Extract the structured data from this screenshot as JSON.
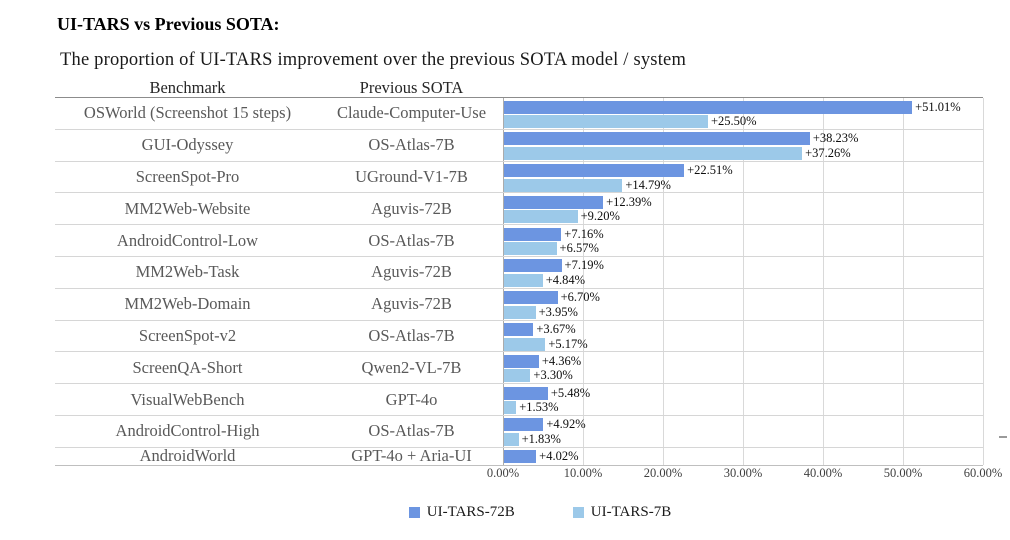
{
  "header": {
    "title": "UI-TARS vs Previous SOTA:",
    "subtitle": "The proportion of UI-TARS improvement over the previous SOTA model / system"
  },
  "table": {
    "columns": [
      "Benchmark",
      "Previous SOTA"
    ]
  },
  "chart_data": {
    "type": "bar",
    "orientation": "horizontal",
    "title": "UI-TARS vs Previous SOTA:",
    "subtitle": "The proportion of UI-TARS improvement over the previous SOTA model / system",
    "xlim": [
      0,
      60
    ],
    "x_tick_labels": [
      "0.00%",
      "10.00%",
      "20.00%",
      "30.00%",
      "40.00%",
      "50.00%",
      "60.00%"
    ],
    "grid": true,
    "legend_position": "bottom",
    "series_names": [
      "UI-TARS-72B",
      "UI-TARS-7B"
    ],
    "colors": {
      "ui_tars_72b": "#6C95E1",
      "ui_tars_7b": "#9CC9E9"
    },
    "rows": [
      {
        "benchmark": "OSWorld (Screenshot 15 steps)",
        "previous_sota": "Claude-Computer-Use",
        "ui_tars_72b": 51.01,
        "ui_tars_72b_label": "+51.01%",
        "ui_tars_7b": 25.5,
        "ui_tars_7b_label": "+25.50%"
      },
      {
        "benchmark": "GUI-Odyssey",
        "previous_sota": "OS-Atlas-7B",
        "ui_tars_72b": 38.23,
        "ui_tars_72b_label": "+38.23%",
        "ui_tars_7b": 37.26,
        "ui_tars_7b_label": "+37.26%"
      },
      {
        "benchmark": "ScreenSpot-Pro",
        "previous_sota": "UGround-V1-7B",
        "ui_tars_72b": 22.51,
        "ui_tars_72b_label": "+22.51%",
        "ui_tars_7b": 14.79,
        "ui_tars_7b_label": "+14.79%"
      },
      {
        "benchmark": "MM2Web-Website",
        "previous_sota": "Aguvis-72B",
        "ui_tars_72b": 12.39,
        "ui_tars_72b_label": "+12.39%",
        "ui_tars_7b": 9.2,
        "ui_tars_7b_label": "+9.20%"
      },
      {
        "benchmark": "AndroidControl-Low",
        "previous_sota": "OS-Atlas-7B",
        "ui_tars_72b": 7.16,
        "ui_tars_72b_label": "+7.16%",
        "ui_tars_7b": 6.57,
        "ui_tars_7b_label": "+6.57%"
      },
      {
        "benchmark": "MM2Web-Task",
        "previous_sota": "Aguvis-72B",
        "ui_tars_72b": 7.19,
        "ui_tars_72b_label": "+7.19%",
        "ui_tars_7b": 4.84,
        "ui_tars_7b_label": "+4.84%"
      },
      {
        "benchmark": "MM2Web-Domain",
        "previous_sota": "Aguvis-72B",
        "ui_tars_72b": 6.7,
        "ui_tars_72b_label": "+6.70%",
        "ui_tars_7b": 3.95,
        "ui_tars_7b_label": "+3.95%"
      },
      {
        "benchmark": "ScreenSpot-v2",
        "previous_sota": "OS-Atlas-7B",
        "ui_tars_72b": 3.67,
        "ui_tars_72b_label": "+3.67%",
        "ui_tars_7b": 5.17,
        "ui_tars_7b_label": "+5.17%"
      },
      {
        "benchmark": "ScreenQA-Short",
        "previous_sota": "Qwen2-VL-7B",
        "ui_tars_72b": 4.36,
        "ui_tars_72b_label": "+4.36%",
        "ui_tars_7b": 3.3,
        "ui_tars_7b_label": "+3.30%"
      },
      {
        "benchmark": "VisualWebBench",
        "previous_sota": "GPT-4o",
        "ui_tars_72b": 5.48,
        "ui_tars_72b_label": "+5.48%",
        "ui_tars_7b": 1.53,
        "ui_tars_7b_label": "+1.53%"
      },
      {
        "benchmark": "AndroidControl-High",
        "previous_sota": "OS-Atlas-7B",
        "ui_tars_72b": 4.92,
        "ui_tars_72b_label": "+4.92%",
        "ui_tars_7b": 1.83,
        "ui_tars_7b_label": "+1.83%"
      },
      {
        "benchmark": "AndroidWorld",
        "previous_sota": "GPT-4o + Aria-UI",
        "ui_tars_72b": 4.02,
        "ui_tars_72b_label": "+4.02%",
        "ui_tars_7b": null,
        "ui_tars_7b_label": null
      }
    ],
    "legend": [
      {
        "label": "UI-TARS-72B",
        "color": "#6C95E1"
      },
      {
        "label": "UI-TARS-7B",
        "color": "#9CC9E9"
      }
    ]
  }
}
